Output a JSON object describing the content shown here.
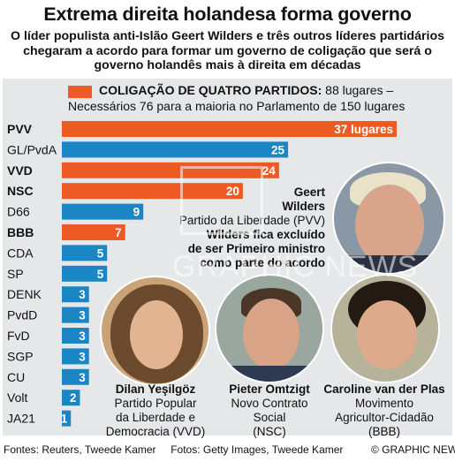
{
  "title": "Extrema direita holandesa forma governo",
  "subtitle": "O líder populista anti-Islão Geert Wilders e três outros líderes partidários chegaram a acordo para formar um governo de coligação que será o governo holandês mais à direita em décadas",
  "legend": {
    "label_bold": "COLIGAÇÃO DE QUATRO PARTIDOS:",
    "label_rest": " 88 lugares –",
    "line2": "Necessários 76 para a maioria no Parlamento de 150 lugares"
  },
  "colors": {
    "coalition": "#ee5a24",
    "other": "#1b86c4",
    "panel": "#e6e7e9"
  },
  "chart_data": {
    "type": "bar",
    "orientation": "horizontal",
    "categories": [
      "PVV",
      "GL/PvdA",
      "VVD",
      "NSC",
      "D66",
      "BBB",
      "CDA",
      "SP",
      "DENK",
      "PvdD",
      "FvD",
      "SGP",
      "CU",
      "Volt",
      "JA21"
    ],
    "values": [
      37,
      25,
      24,
      20,
      9,
      7,
      5,
      5,
      3,
      3,
      3,
      3,
      3,
      2,
      1
    ],
    "value_labels": [
      "37 lugares",
      "25",
      "24",
      "20",
      "9",
      "7",
      "5",
      "5",
      "3",
      "3",
      "3",
      "3",
      "3",
      "2",
      "1"
    ],
    "coalition": [
      true,
      false,
      true,
      true,
      false,
      true,
      false,
      false,
      false,
      false,
      false,
      false,
      false,
      false,
      false
    ],
    "xlim": [
      0,
      37
    ]
  },
  "people": {
    "wilders": {
      "name_line1": "Geert",
      "name_line2": "Wilders",
      "party_line": "Partido da Liberdade (PVV)",
      "note_line1": "Wilders fica excluído",
      "note_line2": "de ser Primeiro ministro",
      "note_line3": "como parte do acordo"
    },
    "yesilgoz": {
      "name": "Dilan Yeşilgöz",
      "line1": "Partido Popular",
      "line2": "da Liberdade e",
      "line3": "Democracia (VVD)"
    },
    "omtzigt": {
      "name": "Pieter Omtzigt",
      "line1": "Novo Contrato",
      "line2": "Social",
      "line3": "(NSC)"
    },
    "vanderplas": {
      "name": "Caroline van der Plas",
      "line1": "Movimento",
      "line2": "Agricultor-Cidadão",
      "line3": "(BBB)"
    }
  },
  "watermark": "GRAPHIC NEWS",
  "footer": {
    "sources": "Fontes: Reuters, Tweede Kamer",
    "photos": "Fotos: Getty Images, Tweede Kamer",
    "credit": "© GRAPHIC NEWS"
  }
}
